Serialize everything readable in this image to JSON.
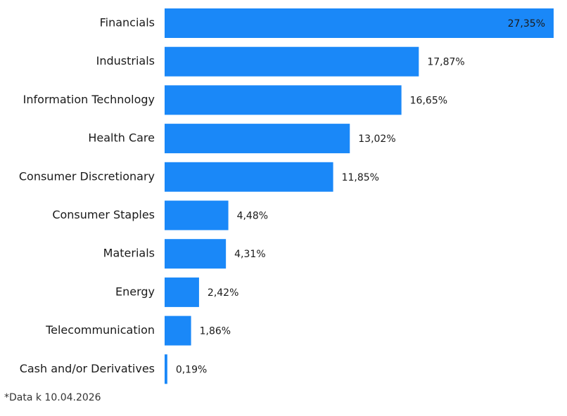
{
  "chart_data": {
    "type": "bar",
    "orientation": "horizontal",
    "color": "#1a88f8",
    "categories": [
      "Financials",
      "Industrials",
      "Information Technology",
      "Health Care",
      "Consumer Discretionary",
      "Consumer Staples",
      "Materials",
      "Energy",
      "Telecommunication",
      "Cash and/or Derivatives"
    ],
    "values": [
      27.35,
      17.87,
      16.65,
      13.02,
      11.85,
      4.48,
      4.31,
      2.42,
      1.86,
      0.19
    ],
    "value_labels": [
      "27,35%",
      "17,87%",
      "16,65%",
      "13,02%",
      "11,85%",
      "4,48%",
      "4,31%",
      "2,42%",
      "1,86%",
      "0,19%"
    ],
    "footnote": "*Data k 10.04.2026"
  }
}
